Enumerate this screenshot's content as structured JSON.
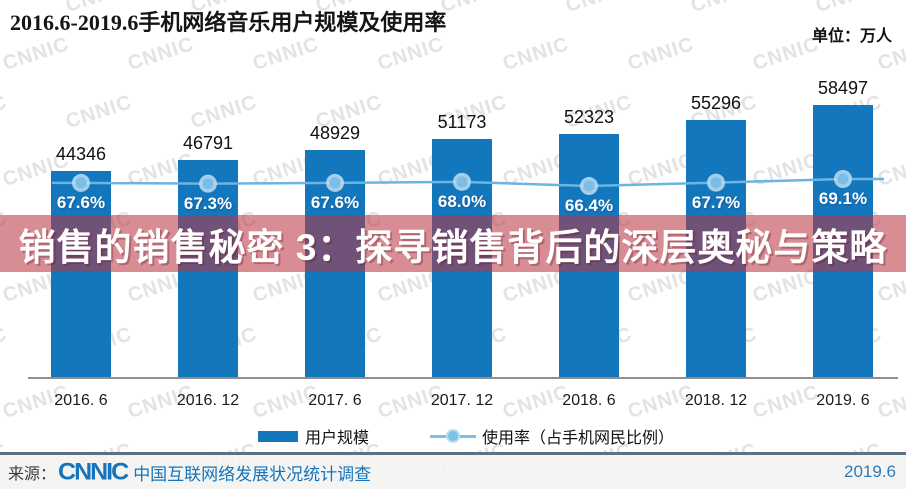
{
  "title": "2016.6-2019.6手机网络音乐用户规模及使用率",
  "unit_label": "单位：万人",
  "watermark_text": "CNNIC",
  "overlay_banner": {
    "text": "销售的销售秘密 3：探寻销售背后的深层奥秘与策略",
    "color": "#ba3442"
  },
  "chart_data": {
    "type": "bar",
    "title": "2016.6-2019.6手机网络音乐用户规模及使用率",
    "categories": [
      "2016. 6",
      "2016. 12",
      "2017. 6",
      "2017. 12",
      "2018. 6",
      "2018. 12",
      "2019. 6"
    ],
    "series": [
      {
        "name": "用户规模",
        "type": "bar",
        "unit": "万人",
        "color": "#1377be",
        "values": [
          44346,
          46791,
          48929,
          51173,
          52323,
          55296,
          58497
        ],
        "value_labels": [
          "44346",
          "46791",
          "48929",
          "51173",
          "52323",
          "55296",
          "58497"
        ]
      },
      {
        "name": "使用率（占手机网民比例）",
        "type": "line",
        "unit": "%",
        "color": "#7cc0e8",
        "values": [
          67.6,
          67.3,
          67.6,
          68.0,
          66.4,
          67.7,
          69.1
        ],
        "value_labels": [
          "67.6%",
          "67.3%",
          "67.6%",
          "68.0%",
          "66.4%",
          "67.7%",
          "69.1%"
        ]
      }
    ],
    "ylabel": "单位：万人",
    "grid": false,
    "legend_position": "bottom"
  },
  "legend": {
    "bar_label": "用户规模",
    "line_label": "使用率（占手机网民比例）"
  },
  "footer": {
    "source_prefix": "来源：",
    "logo_text": "CNNIC",
    "source_text": "中国互联网络发展状况统计调查",
    "date_label": "2019.6"
  }
}
